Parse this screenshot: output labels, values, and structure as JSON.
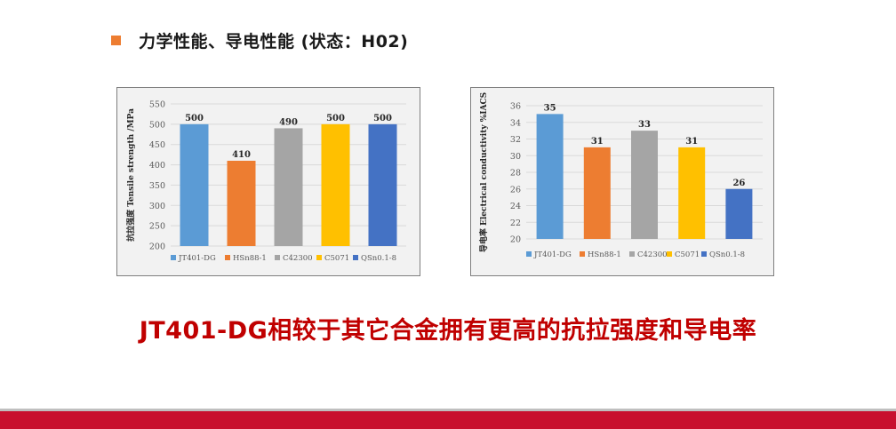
{
  "heading": {
    "text": "力学性能、导电性能 (状态：H02)",
    "bullet_color": "#ed7d31"
  },
  "conclusion": "JT401-DG相较于其它合金拥有更高的抗拉强度和导电率",
  "colors": {
    "conclusion": "#c00000",
    "footer_bar": "#c8102e",
    "panel_bg": "#f2f2f2"
  },
  "chart_data": [
    {
      "type": "bar",
      "ylabel": "抗拉强度 Tensile strength /MPa",
      "ylim": [
        200,
        550
      ],
      "yticks": [
        200,
        250,
        300,
        350,
        400,
        450,
        500,
        550
      ],
      "grid": true,
      "legend_position": "bottom",
      "data_labels": true,
      "series": [
        {
          "name": "JT401-DG",
          "value": 500,
          "color": "#5b9bd5"
        },
        {
          "name": "HSn88-1",
          "value": 410,
          "color": "#ed7d31"
        },
        {
          "name": "C42300",
          "value": 490,
          "color": "#a5a5a5"
        },
        {
          "name": "C5071",
          "value": 500,
          "color": "#ffc000"
        },
        {
          "name": "QSn0.1-8",
          "value": 500,
          "color": "#4472c4"
        }
      ]
    },
    {
      "type": "bar",
      "ylabel": "导电率 Electrical conductivity %IACS",
      "ylim": [
        20,
        36
      ],
      "yticks": [
        20,
        22,
        24,
        26,
        28,
        30,
        32,
        34,
        36
      ],
      "grid": true,
      "legend_position": "bottom",
      "data_labels": true,
      "series": [
        {
          "name": "JT401-DG",
          "value": 35,
          "color": "#5b9bd5"
        },
        {
          "name": "HSn88-1",
          "value": 31,
          "color": "#ed7d31"
        },
        {
          "name": "C42300",
          "value": 33,
          "color": "#a5a5a5"
        },
        {
          "name": "C5071",
          "value": 31,
          "color": "#ffc000"
        },
        {
          "name": "QSn0.1-8",
          "value": 26,
          "color": "#4472c4"
        }
      ]
    }
  ]
}
